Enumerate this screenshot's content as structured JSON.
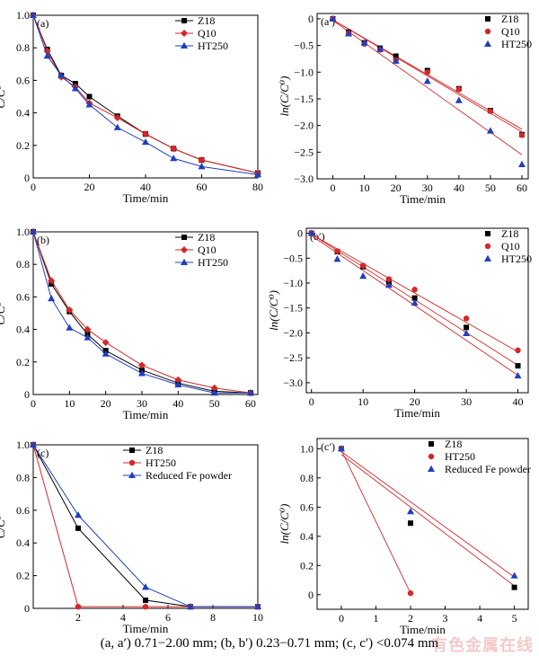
{
  "caption": "(a, a′) 0.71−2.00 mm; (b, b′) 0.23−0.71 mm; (c, c′) <0.074 mm",
  "watermark": "有色金属在线",
  "chart_data": [
    {
      "id": "a",
      "panel_label": "(a)",
      "type": "line",
      "xlabel": "Time/min",
      "ylabel": "C/C⁰",
      "xlim": [
        0,
        80
      ],
      "ylim": [
        0,
        1.0
      ],
      "xticks": [
        0,
        20,
        40,
        60,
        80
      ],
      "yticks": [
        0,
        0.2,
        0.4,
        0.6,
        0.8,
        1.0
      ],
      "ytick_labels": [
        "0",
        "0.2",
        "0.4",
        "0.6",
        "0.8",
        "1.0"
      ],
      "legend_position": "top-right",
      "series": [
        {
          "name": "Z18",
          "color": "#000000",
          "marker": "square",
          "connect": true,
          "x": [
            0,
            5,
            10,
            15,
            20,
            30,
            40,
            50,
            60,
            80
          ],
          "y": [
            1.0,
            0.79,
            0.63,
            0.58,
            0.5,
            0.38,
            0.27,
            0.18,
            0.11,
            0.03
          ]
        },
        {
          "name": "Q10",
          "color": "#d62728",
          "marker": "diamond",
          "connect": true,
          "x": [
            0,
            5,
            10,
            15,
            20,
            30,
            40,
            50,
            60,
            80
          ],
          "y": [
            1.0,
            0.78,
            0.62,
            0.56,
            0.46,
            0.37,
            0.27,
            0.18,
            0.11,
            0.03
          ]
        },
        {
          "name": "HT250",
          "color": "#1f3fbf",
          "marker": "triangle",
          "connect": true,
          "x": [
            0,
            5,
            10,
            15,
            20,
            30,
            40,
            50,
            60,
            80
          ],
          "y": [
            1.0,
            0.75,
            0.63,
            0.55,
            0.45,
            0.31,
            0.22,
            0.12,
            0.07,
            0.02
          ]
        }
      ]
    },
    {
      "id": "a2",
      "panel_label": "(a′)",
      "type": "scatter",
      "xlabel": "Time/min",
      "ylabel": "ln(C/C⁰)",
      "xlim": [
        -5,
        62
      ],
      "ylim": [
        -3.0,
        0.1
      ],
      "xticks": [
        0,
        10,
        20,
        30,
        40,
        50,
        60
      ],
      "yticks": [
        0,
        -0.5,
        -1.0,
        -1.5,
        -2.0,
        -2.5,
        -3.0
      ],
      "ytick_labels": [
        "0",
        "−0.5",
        "−1.0",
        "−1.5",
        "−2.0",
        "−2.5",
        "−3.0"
      ],
      "legend_position": "top-right",
      "series": [
        {
          "name": "Z18",
          "color": "#000000",
          "marker": "square",
          "x": [
            0,
            5,
            10,
            15,
            20,
            30,
            40,
            50,
            60
          ],
          "y": [
            0,
            -0.25,
            -0.45,
            -0.55,
            -0.7,
            -0.97,
            -1.31,
            -1.72,
            -2.17
          ]
        },
        {
          "name": "Q10",
          "color": "#d62728",
          "marker": "circle",
          "x": [
            0,
            5,
            10,
            15,
            20,
            30,
            40,
            50,
            60
          ],
          "y": [
            0,
            -0.27,
            -0.47,
            -0.58,
            -0.77,
            -1.0,
            -1.32,
            -1.73,
            -2.18
          ]
        },
        {
          "name": "HT250",
          "color": "#1f3fbf",
          "marker": "triangle",
          "x": [
            0,
            5,
            10,
            15,
            20,
            30,
            40,
            50,
            60
          ],
          "y": [
            0,
            -0.28,
            -0.45,
            -0.57,
            -0.79,
            -1.17,
            -1.53,
            -2.1,
            -2.73
          ]
        }
      ],
      "fit_lines": [
        {
          "color": "#d62728",
          "x": [
            0,
            60
          ],
          "y": [
            -0.02,
            -2.07
          ]
        },
        {
          "color": "#d62728",
          "x": [
            0,
            60
          ],
          "y": [
            -0.02,
            -2.12
          ]
        },
        {
          "color": "#d62728",
          "x": [
            0,
            60
          ],
          "y": [
            -0.03,
            -2.55
          ]
        }
      ]
    },
    {
      "id": "b",
      "panel_label": "(b)",
      "type": "line",
      "xlabel": "Time/min",
      "ylabel": "C/C⁰",
      "xlim": [
        0,
        62
      ],
      "ylim": [
        0,
        1.0
      ],
      "xticks": [
        0,
        10,
        20,
        30,
        40,
        50,
        60
      ],
      "yticks": [
        0,
        0.2,
        0.4,
        0.6,
        0.8,
        1.0
      ],
      "ytick_labels": [
        "0",
        "0.2",
        "0.4",
        "0.6",
        "0.8",
        "1.0"
      ],
      "legend_position": "top-right",
      "series": [
        {
          "name": "Z18",
          "color": "#000000",
          "marker": "square",
          "connect": true,
          "x": [
            0,
            5,
            10,
            15,
            20,
            30,
            40,
            50,
            60
          ],
          "y": [
            1.0,
            0.68,
            0.51,
            0.37,
            0.27,
            0.15,
            0.07,
            0.02,
            0.01
          ]
        },
        {
          "name": "Q10",
          "color": "#d62728",
          "marker": "diamond",
          "connect": true,
          "x": [
            0,
            5,
            10,
            15,
            20,
            30,
            40,
            50,
            60
          ],
          "y": [
            1.0,
            0.7,
            0.52,
            0.4,
            0.32,
            0.18,
            0.09,
            0.04,
            0.01
          ]
        },
        {
          "name": "HT250",
          "color": "#1f3fbf",
          "marker": "triangle",
          "connect": true,
          "x": [
            0,
            5,
            10,
            15,
            20,
            30,
            40,
            50,
            60
          ],
          "y": [
            1.0,
            0.59,
            0.41,
            0.35,
            0.25,
            0.13,
            0.06,
            0.01,
            0.01
          ]
        }
      ]
    },
    {
      "id": "b2",
      "panel_label": "(b′)",
      "type": "scatter",
      "xlabel": "Time/min",
      "ylabel": "ln(C/C⁰)",
      "xlim": [
        -1,
        42
      ],
      "ylim": [
        -3.2,
        0.1
      ],
      "xticks": [
        0,
        10,
        20,
        30,
        40
      ],
      "yticks": [
        0,
        -0.5,
        -1.0,
        -1.5,
        -2.0,
        -2.5,
        -3.0
      ],
      "ytick_labels": [
        "0",
        "−0.5",
        "−1.0",
        "−1.5",
        "−2.0",
        "−2.5",
        "−3.0"
      ],
      "legend_position": "top-right",
      "series": [
        {
          "name": "Z18",
          "color": "#000000",
          "marker": "square",
          "x": [
            0,
            5,
            10,
            15,
            20,
            30,
            40
          ],
          "y": [
            0,
            -0.37,
            -0.67,
            -0.98,
            -1.3,
            -1.89,
            -2.66
          ]
        },
        {
          "name": "Q10",
          "color": "#d62728",
          "marker": "circle",
          "x": [
            0,
            5,
            10,
            15,
            20,
            30,
            40
          ],
          "y": [
            0,
            -0.36,
            -0.65,
            -0.92,
            -1.13,
            -1.71,
            -2.35
          ]
        },
        {
          "name": "HT250",
          "color": "#1f3fbf",
          "marker": "triangle",
          "x": [
            0,
            5,
            10,
            15,
            20,
            30,
            40
          ],
          "y": [
            0,
            -0.52,
            -0.86,
            -1.04,
            -1.4,
            -2.01,
            -2.86
          ]
        }
      ],
      "fit_lines": [
        {
          "color": "#d62728",
          "x": [
            0,
            40
          ],
          "y": [
            -0.02,
            -2.65
          ]
        },
        {
          "color": "#d62728",
          "x": [
            0,
            40
          ],
          "y": [
            -0.02,
            -2.38
          ]
        },
        {
          "color": "#d62728",
          "x": [
            0,
            40
          ],
          "y": [
            -0.05,
            -2.85
          ]
        }
      ]
    },
    {
      "id": "c",
      "panel_label": "(c)",
      "type": "line",
      "xlabel": "Time/min",
      "ylabel": "C/C⁰",
      "xlim": [
        0,
        10
      ],
      "ylim": [
        0,
        1.0
      ],
      "xticks": [
        2,
        4,
        6,
        8,
        10
      ],
      "yticks": [
        0,
        0.2,
        0.4,
        0.6,
        0.8,
        1.0
      ],
      "ytick_labels": [
        "0",
        "0.2",
        "0.4",
        "0.6",
        "0.8",
        "1.0"
      ],
      "legend_position": "top-right",
      "series": [
        {
          "name": "Z18",
          "color": "#000000",
          "marker": "square",
          "connect": true,
          "x": [
            0,
            2,
            5,
            7,
            10
          ],
          "y": [
            1.0,
            0.49,
            0.05,
            0.01,
            0.01
          ]
        },
        {
          "name": "HT250",
          "color": "#d62728",
          "marker": "circle",
          "connect": true,
          "x": [
            0,
            2,
            5,
            7,
            10
          ],
          "y": [
            1.0,
            0.01,
            0.01,
            0.01,
            0.01
          ]
        },
        {
          "name": "Reduced Fe powder",
          "color": "#1f3fbf",
          "marker": "triangle",
          "connect": true,
          "x": [
            0,
            2,
            5,
            7,
            10
          ],
          "y": [
            1.0,
            0.57,
            0.13,
            0.01,
            0.01
          ]
        }
      ]
    },
    {
      "id": "c2",
      "panel_label": "(c′)",
      "type": "scatter",
      "xlabel": "Time/min",
      "ylabel": "ln(C/C⁰)",
      "xlim": [
        -0.7,
        5.4
      ],
      "ylim": [
        -0.1,
        1.07
      ],
      "xticks": [
        0,
        1,
        2,
        3,
        4,
        5
      ],
      "yticks": [
        0,
        0.2,
        0.4,
        0.6,
        0.8,
        1.0
      ],
      "ytick_labels": [
        "0",
        "0.2",
        "0.4",
        "0.6",
        "0.8",
        "1.0"
      ],
      "legend_position": "top-right",
      "series": [
        {
          "name": "Z18",
          "color": "#000000",
          "marker": "square",
          "x": [
            0,
            2,
            5
          ],
          "y": [
            1.0,
            0.49,
            0.05
          ]
        },
        {
          "name": "HT250",
          "color": "#d62728",
          "marker": "circle",
          "x": [
            0,
            2
          ],
          "y": [
            1.0,
            0.01
          ]
        },
        {
          "name": "Reduced Fe powder",
          "color": "#1f3fbf",
          "marker": "triangle",
          "x": [
            0,
            2,
            5
          ],
          "y": [
            1.0,
            0.57,
            0.13
          ]
        }
      ],
      "fit_lines": [
        {
          "color": "#d62728",
          "x": [
            0,
            2
          ],
          "y": [
            0.99,
            0.01
          ]
        },
        {
          "color": "#d62728",
          "x": [
            0,
            5
          ],
          "y": [
            0.96,
            0.06
          ]
        },
        {
          "color": "#d62728",
          "x": [
            0,
            5
          ],
          "y": [
            0.98,
            0.12
          ]
        }
      ]
    }
  ]
}
